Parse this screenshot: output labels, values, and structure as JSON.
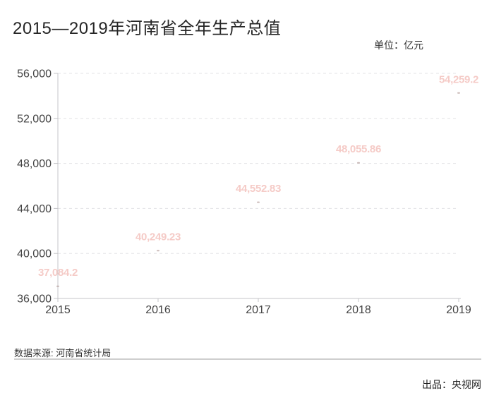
{
  "header": {
    "title": "2015—2019年河南省全年生产总值",
    "unit_label": "单位：亿元"
  },
  "chart_data": {
    "type": "line",
    "title": "2015—2019年河南省全年生产总值",
    "unit": "亿元",
    "categories": [
      "2015",
      "2016",
      "2017",
      "2018",
      "2019"
    ],
    "values": [
      37084.2,
      40249.23,
      44552.83,
      48055.86,
      54259.2
    ],
    "value_labels": [
      "37,084.2",
      "40,249.23",
      "44,552.83",
      "48,055.86",
      "54,259.2"
    ],
    "ylim": [
      36000,
      56000
    ],
    "ytick_values": [
      36000,
      40000,
      44000,
      48000,
      52000,
      56000
    ],
    "ytick_labels": [
      "36,000",
      "40,000",
      "44,000",
      "48,000",
      "52,000",
      "56,000"
    ],
    "grid": "horizontal-dashed",
    "legend": "none",
    "line_visible": false,
    "xlabel": "",
    "ylabel": "亿元"
  },
  "footer": {
    "source": "数据来源: 河南省统计局",
    "producer": "出品：央视网"
  },
  "colors": {
    "value_label": "#f5cbc7",
    "data_point": "#b9a4a2",
    "axis_line": "#c4c4c8",
    "axis_text": "#444444",
    "grid_line": "#e3e3e6",
    "title_text": "#262626"
  }
}
